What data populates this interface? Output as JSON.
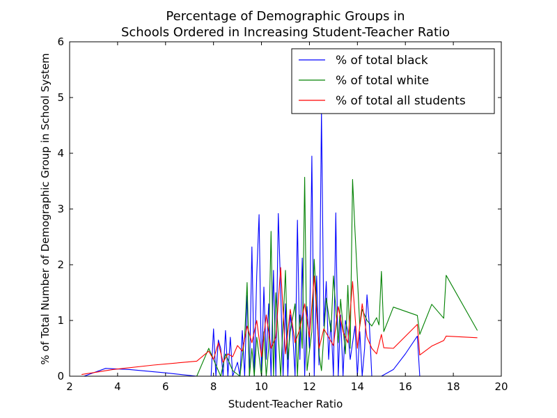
{
  "chart_data": {
    "type": "line",
    "title_line1": "Percentage of Demographic Groups in",
    "title_line2": "Schools Ordered in Increasing Student-Teacher Ratio",
    "xlabel": "Student-Teacher Ratio",
    "ylabel": "% of Total Number of Demographic Group in School System",
    "xlim": [
      2,
      20
    ],
    "ylim": [
      0,
      6
    ],
    "x_ticks": [
      2,
      4,
      6,
      8,
      10,
      12,
      14,
      16,
      18,
      20
    ],
    "y_ticks": [
      0,
      1,
      2,
      3,
      4,
      5,
      6
    ],
    "grid": false,
    "legend_position": "top-right",
    "series": [
      {
        "name": "% of total black",
        "color": "#0000ff",
        "x": [
          2.6,
          3.5,
          4.5,
          6.0,
          7.3,
          7.9,
          8.0,
          8.1,
          8.2,
          8.3,
          8.4,
          8.5,
          8.6,
          8.7,
          8.8,
          9.0,
          9.1,
          9.2,
          9.3,
          9.4,
          9.5,
          9.6,
          9.7,
          9.8,
          9.9,
          10.0,
          10.1,
          10.2,
          10.3,
          10.4,
          10.5,
          10.6,
          10.7,
          10.8,
          10.9,
          11.0,
          11.1,
          11.2,
          11.3,
          11.4,
          11.5,
          11.6,
          11.7,
          11.8,
          11.9,
          12.0,
          12.1,
          12.2,
          12.3,
          12.4,
          12.5,
          12.6,
          12.7,
          12.8,
          12.9,
          13.0,
          13.1,
          13.2,
          13.3,
          13.4,
          13.5,
          13.6,
          13.7,
          13.8,
          13.9,
          14.0,
          14.1,
          14.2,
          14.3,
          14.4,
          14.5,
          14.6,
          14.8,
          15.0,
          15.5,
          16.0,
          16.5,
          16.6,
          17.0,
          17.5,
          18.0,
          18.5,
          19.0
        ],
        "values": [
          0.0,
          0.14,
          0.12,
          0.06,
          0.0,
          0.0,
          0.85,
          0.0,
          0.65,
          0.5,
          0.0,
          0.82,
          0.0,
          0.7,
          0.0,
          0.25,
          0.0,
          0.82,
          0.0,
          1.45,
          0.0,
          2.32,
          0.0,
          1.8,
          2.9,
          0.0,
          1.6,
          0.3,
          1.3,
          0.0,
          1.9,
          0.0,
          2.92,
          1.55,
          0.0,
          1.3,
          0.0,
          1.1,
          0.8,
          0.0,
          2.8,
          0.3,
          2.12,
          0.0,
          1.25,
          0.5,
          3.95,
          0.0,
          1.8,
          0.2,
          4.75,
          0.9,
          1.7,
          0.3,
          1.0,
          0.0,
          2.93,
          0.0,
          1.1,
          0.0,
          1.0,
          0.8,
          0.3,
          0.6,
          0.9,
          0.0,
          0.8,
          0.0,
          0.5,
          1.46,
          0.9,
          0.0,
          0.0,
          0.0,
          0.12,
          0.4,
          0.72,
          0.0,
          0.0,
          0.0,
          0.0,
          0.0,
          0.0
        ]
      },
      {
        "name": "% of total white",
        "color": "#008000",
        "x": [
          7.3,
          7.8,
          8.0,
          8.3,
          8.5,
          8.8,
          9.1,
          9.3,
          9.4,
          9.5,
          9.6,
          9.7,
          9.8,
          10.0,
          10.1,
          10.2,
          10.3,
          10.4,
          10.5,
          10.6,
          10.8,
          11.0,
          11.1,
          11.2,
          11.4,
          11.5,
          11.6,
          11.7,
          11.8,
          11.9,
          12.1,
          12.2,
          12.4,
          12.5,
          12.7,
          12.9,
          13.0,
          13.2,
          13.3,
          13.5,
          13.6,
          13.7,
          13.8,
          13.9,
          14.1,
          14.2,
          14.4,
          14.6,
          14.8,
          14.9,
          15.0,
          15.1,
          15.5,
          16.5,
          16.6,
          17.1,
          17.6,
          17.7,
          19.0
        ],
        "values": [
          0.0,
          0.5,
          0.3,
          0.0,
          0.4,
          0.1,
          0.0,
          0.7,
          1.68,
          0.0,
          0.5,
          0.0,
          0.7,
          0.0,
          0.8,
          0.0,
          0.5,
          2.6,
          0.0,
          1.5,
          0.0,
          1.9,
          0.3,
          0.8,
          1.3,
          0.0,
          1.1,
          0.5,
          3.57,
          0.1,
          0.8,
          2.1,
          0.4,
          0.1,
          1.4,
          0.8,
          1.8,
          0.6,
          1.38,
          0.4,
          1.63,
          0.5,
          3.53,
          2.6,
          0.9,
          1.2,
          1.0,
          0.9,
          1.05,
          0.92,
          1.88,
          0.8,
          1.24,
          1.09,
          0.75,
          1.29,
          1.04,
          1.81,
          0.82
        ]
      },
      {
        "name": "% of total all students",
        "color": "#ff0000",
        "x": [
          2.5,
          3.8,
          5.5,
          7.3,
          7.8,
          8.0,
          8.2,
          8.4,
          8.6,
          8.8,
          9.0,
          9.2,
          9.4,
          9.6,
          9.8,
          10.0,
          10.2,
          10.4,
          10.6,
          10.8,
          11.0,
          11.2,
          11.4,
          11.6,
          11.8,
          12.0,
          12.2,
          12.4,
          12.6,
          12.8,
          13.0,
          13.2,
          13.4,
          13.6,
          13.8,
          14.0,
          14.2,
          14.4,
          14.6,
          14.8,
          15.0,
          15.1,
          15.5,
          16.5,
          16.6,
          17.1,
          17.6,
          17.7,
          19.0
        ],
        "values": [
          0.03,
          0.12,
          0.2,
          0.27,
          0.45,
          0.3,
          0.6,
          0.25,
          0.4,
          0.35,
          0.55,
          0.45,
          0.9,
          0.6,
          1.0,
          0.35,
          1.1,
          0.5,
          0.7,
          1.95,
          0.4,
          1.2,
          0.6,
          0.85,
          1.3,
          0.7,
          1.8,
          0.5,
          0.85,
          0.7,
          0.55,
          1.25,
          0.8,
          0.6,
          1.7,
          0.5,
          1.3,
          0.7,
          0.5,
          0.4,
          0.75,
          0.51,
          0.5,
          0.93,
          0.38,
          0.54,
          0.64,
          0.72,
          0.69
        ]
      }
    ]
  }
}
